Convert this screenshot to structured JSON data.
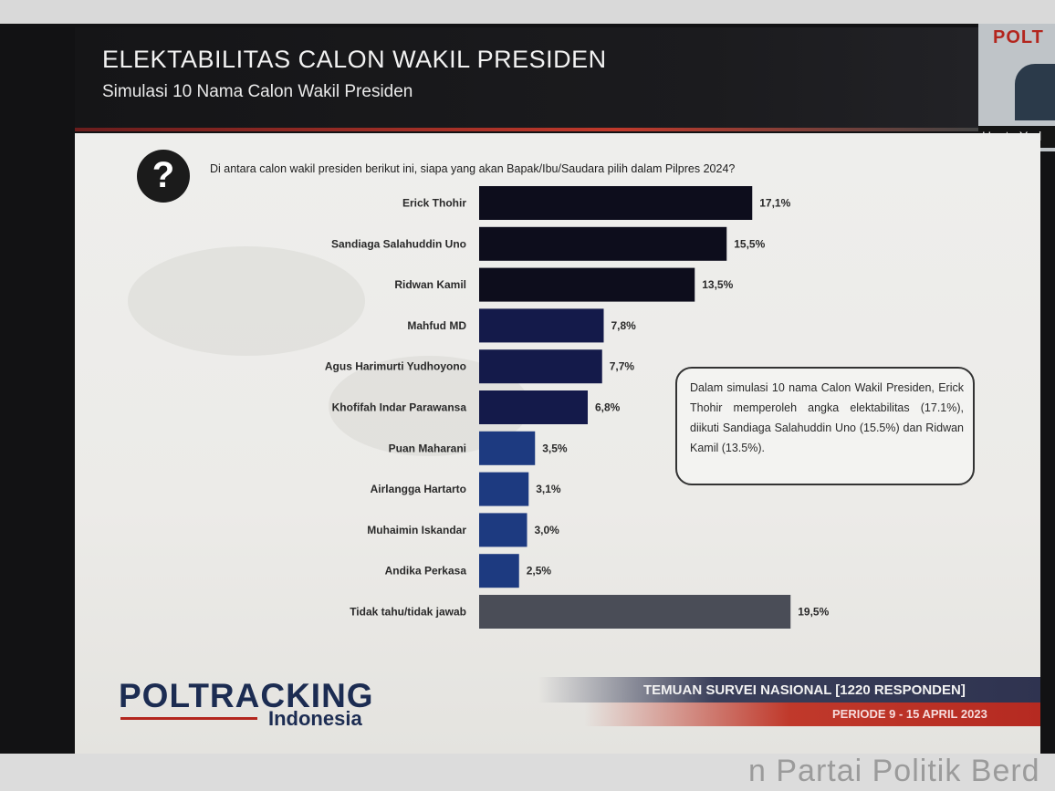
{
  "header": {
    "title": "ELEKTABILITAS CALON WAKIL PRESIDEN",
    "subtitle": "Simulasi 10 Nama Calon Wakil Presiden"
  },
  "video": {
    "logo_text": "POLT",
    "name": "Hanta Yud"
  },
  "question": {
    "icon": "question-mark-icon",
    "text": "Di antara calon wakil presiden berikut ini, siapa yang akan Bapak/Ibu/Saudara pilih dalam Pilpres 2024?"
  },
  "chart_data": {
    "type": "bar",
    "orientation": "horizontal",
    "categories": [
      "Erick Thohir",
      "Sandiaga Salahuddin Uno",
      "Ridwan Kamil",
      "Mahfud MD",
      "Agus Harimurti Yudhoyono",
      "Khofifah Indar Parawansa",
      "Puan Maharani",
      "Airlangga Hartarto",
      "Muhaimin Iskandar",
      "Andika Perkasa",
      "Tidak tahu/tidak jawab"
    ],
    "values": [
      17.1,
      15.5,
      13.5,
      7.8,
      7.7,
      6.8,
      3.5,
      3.1,
      3.0,
      2.5,
      19.5
    ],
    "value_labels": [
      "17,1%",
      "15,5%",
      "13,5%",
      "7,8%",
      "7,7%",
      "6,8%",
      "3,5%",
      "3,1%",
      "3,0%",
      "2,5%",
      "19,5%"
    ],
    "colors": [
      "#0d0d1c",
      "#0d0d1c",
      "#0d0d1c",
      "#141a4a",
      "#141a4a",
      "#141a4a",
      "#1d3a80",
      "#1d3a80",
      "#1d3a80",
      "#1d3a80",
      "#4a4d57"
    ],
    "xlim": [
      0,
      19.5
    ],
    "grid": false
  },
  "callout": {
    "text": "Dalam simulasi 10 nama Calon Wakil Presiden, Erick Thohir memperoleh angka elektabilitas (17.1%), diikuti Sandiaga Salahuddin Uno (15.5%) dan Ridwan Kamil (13.5%)."
  },
  "footer": {
    "logo_main": "POLTRACKING",
    "logo_sub": "Indonesia",
    "banner": "TEMUAN SURVEI NASIONAL [1220 RESPONDEN]",
    "period": "PERIODE 9 - 15 APRIL 2023"
  },
  "bottom_strip": {
    "text": "n Partai Politik Berd"
  }
}
